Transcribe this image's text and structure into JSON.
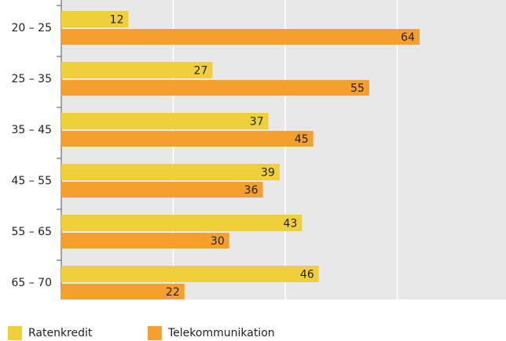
{
  "chart_data": {
    "type": "bar",
    "orientation": "horizontal",
    "categories": [
      "20 – 25",
      "25 – 35",
      "35 – 45",
      "45 – 55",
      "55 – 65",
      "65 – 70"
    ],
    "series": [
      {
        "name": "Ratenkredit",
        "color": "#f0cf3c",
        "values": [
          12,
          27,
          37,
          39,
          43,
          46
        ]
      },
      {
        "name": "Telekommunikation",
        "color": "#f59f2f",
        "values": [
          64,
          55,
          45,
          36,
          30,
          22
        ]
      }
    ],
    "xlim": [
      0,
      80
    ],
    "xticks": [
      20,
      40,
      60
    ],
    "grid": true
  }
}
